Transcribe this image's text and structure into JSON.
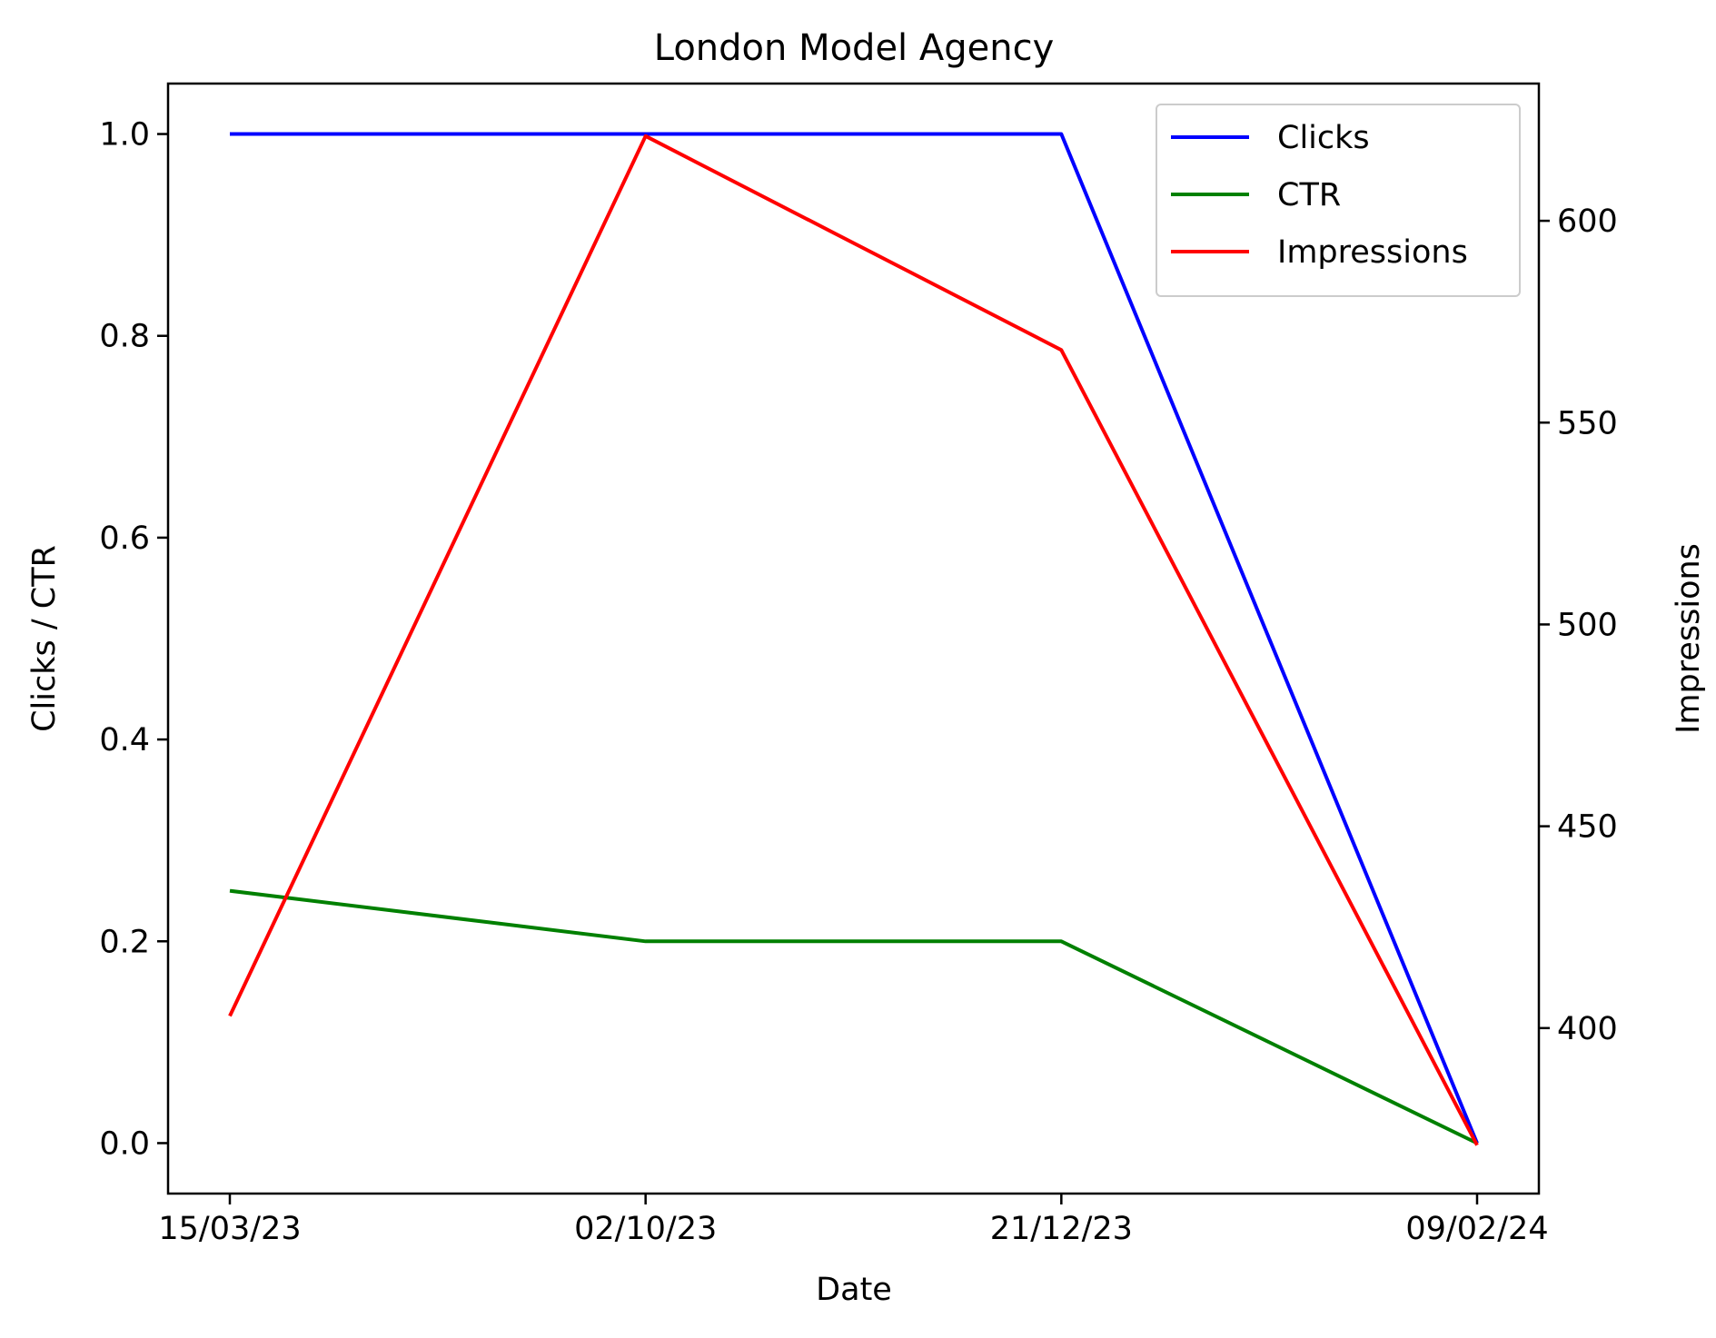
{
  "chart_data": {
    "type": "line",
    "title": "London Model Agency",
    "xlabel": "Date",
    "ylabel": "Clicks / CTR",
    "y2label": "Impressions",
    "categories": [
      "15/03/23",
      "02/10/23",
      "21/12/23",
      "09/02/24"
    ],
    "ylim": [
      -0.05,
      1.05
    ],
    "y2lim": [
      359,
      634
    ],
    "yticks": [
      "0.0",
      "0.2",
      "0.4",
      "0.6",
      "0.8",
      "1.0"
    ],
    "y2ticks": [
      "400",
      "450",
      "500",
      "550",
      "600"
    ],
    "grid": false,
    "legend_position": "top-right",
    "series": [
      {
        "name": "Clicks",
        "axis": "left",
        "color": "#0000ff",
        "values": [
          1,
          1,
          1,
          0
        ]
      },
      {
        "name": "CTR",
        "axis": "left",
        "color": "#008000",
        "values": [
          0.25,
          0.2,
          0.2,
          0
        ]
      },
      {
        "name": "Impressions",
        "axis": "right",
        "color": "#ff0000",
        "values": [
          403,
          621,
          568,
          371
        ]
      }
    ]
  }
}
